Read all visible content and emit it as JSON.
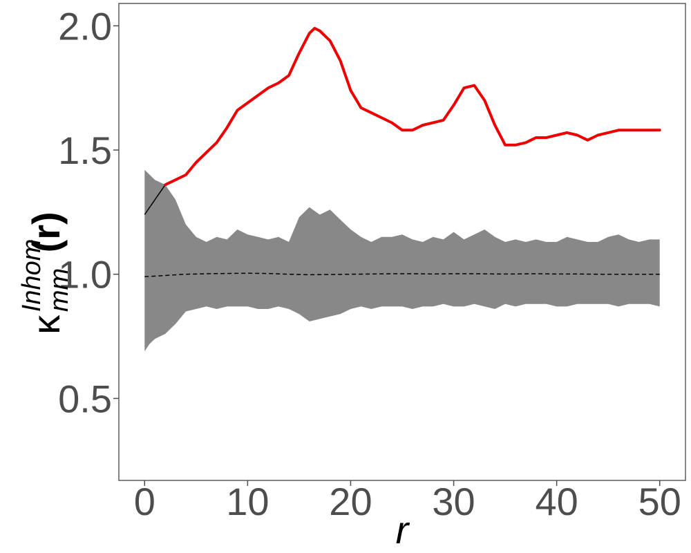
{
  "chart_data": {
    "type": "line",
    "title": "",
    "xlabel": "r",
    "ylabel": {
      "base": "κ",
      "superscript": "Inhom",
      "subscript": "mm",
      "suffix": "(r)"
    },
    "xlim": [
      -2.5,
      52.5
    ],
    "ylim": [
      0.17,
      2.09
    ],
    "x_ticks": [
      0,
      10,
      20,
      30,
      40,
      50
    ],
    "y_ticks": [
      0.5,
      1.0,
      1.5,
      2.0
    ],
    "x_tick_labels": [
      "0",
      "10",
      "20",
      "30",
      "40",
      "50"
    ],
    "y_tick_labels": [
      "0.5",
      "1.0",
      "1.5",
      "2.0"
    ],
    "grid": false,
    "colors": {
      "observed": "#ee0000",
      "observed_low_r": "#000000",
      "theoretical": "#000000",
      "envelope": "#888888",
      "frame": "#333333",
      "ticks": "#4d4d4d"
    },
    "envelope": {
      "x": [
        0,
        0.5,
        1,
        2,
        3,
        4,
        5,
        6,
        7,
        8,
        9,
        10,
        11,
        12,
        13,
        14,
        15,
        16,
        17,
        18,
        19,
        20,
        21,
        22,
        23,
        24,
        25,
        26,
        27,
        28,
        29,
        30,
        31,
        32,
        33,
        34,
        35,
        36,
        37,
        38,
        39,
        40,
        41,
        42,
        43,
        44,
        45,
        46,
        47,
        48,
        49,
        50
      ],
      "upper": [
        1.42,
        1.4,
        1.38,
        1.36,
        1.3,
        1.2,
        1.15,
        1.13,
        1.15,
        1.14,
        1.18,
        1.16,
        1.15,
        1.14,
        1.15,
        1.13,
        1.23,
        1.27,
        1.24,
        1.26,
        1.22,
        1.18,
        1.15,
        1.13,
        1.15,
        1.15,
        1.16,
        1.14,
        1.13,
        1.15,
        1.14,
        1.17,
        1.14,
        1.16,
        1.18,
        1.15,
        1.13,
        1.14,
        1.13,
        1.14,
        1.13,
        1.13,
        1.15,
        1.14,
        1.13,
        1.13,
        1.15,
        1.16,
        1.14,
        1.13,
        1.14,
        1.14
      ],
      "lower": [
        0.69,
        0.72,
        0.74,
        0.76,
        0.8,
        0.85,
        0.86,
        0.87,
        0.86,
        0.87,
        0.87,
        0.87,
        0.86,
        0.86,
        0.87,
        0.86,
        0.84,
        0.81,
        0.82,
        0.83,
        0.84,
        0.86,
        0.87,
        0.86,
        0.87,
        0.87,
        0.87,
        0.86,
        0.87,
        0.87,
        0.88,
        0.87,
        0.87,
        0.88,
        0.87,
        0.86,
        0.88,
        0.87,
        0.88,
        0.88,
        0.88,
        0.87,
        0.87,
        0.88,
        0.88,
        0.88,
        0.88,
        0.87,
        0.88,
        0.88,
        0.88,
        0.87
      ]
    },
    "series": [
      {
        "x": [
          0,
          1,
          2,
          3,
          4,
          5,
          6,
          7,
          8,
          9,
          10,
          11,
          12,
          13,
          14,
          15,
          16,
          16.5,
          17,
          18,
          19,
          20,
          21,
          22,
          23,
          24,
          25,
          26,
          27,
          28,
          29,
          30,
          31,
          32,
          33,
          34,
          35,
          36,
          37,
          38,
          39,
          40,
          41,
          42,
          43,
          44,
          45,
          46,
          47,
          48,
          49,
          50
        ],
        "y": [
          1.24,
          1.3,
          1.36,
          1.38,
          1.4,
          1.45,
          1.49,
          1.53,
          1.59,
          1.66,
          1.69,
          1.72,
          1.75,
          1.77,
          1.8,
          1.89,
          1.97,
          1.99,
          1.98,
          1.94,
          1.86,
          1.74,
          1.67,
          1.65,
          1.63,
          1.61,
          1.58,
          1.58,
          1.6,
          1.61,
          1.62,
          1.68,
          1.75,
          1.76,
          1.7,
          1.6,
          1.52,
          1.52,
          1.53,
          1.55,
          1.55,
          1.56,
          1.57,
          1.56,
          1.54,
          1.56,
          1.57,
          1.58,
          1.58,
          1.58,
          1.58,
          1.58
        ]
      },
      {
        "x": [
          0,
          2,
          4,
          6,
          8,
          10,
          12,
          14,
          16,
          18,
          20,
          22,
          24,
          26,
          28,
          30,
          32,
          34,
          36,
          38,
          40,
          42,
          44,
          46,
          48,
          50
        ],
        "y": [
          0.99,
          0.995,
          1.0,
          1.002,
          1.003,
          1.004,
          1.003,
          1.0,
          0.998,
          0.999,
          1.0,
          1.001,
          1.002,
          1.002,
          1.001,
          1.002,
          1.002,
          1.001,
          1.001,
          1.002,
          1.001,
          1.001,
          1.0,
          1.0,
          1.0,
          1.0
        ]
      }
    ]
  }
}
